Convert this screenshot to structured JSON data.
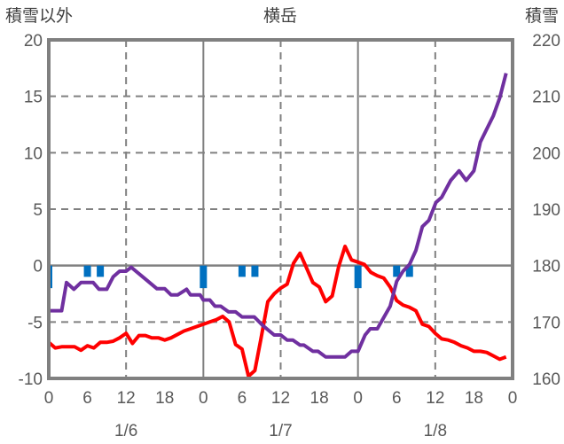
{
  "chart_data": {
    "type": "line",
    "title": "横岳",
    "ylabel_left": "積雪以外",
    "ylabel_right": "積雪",
    "ylim_left": [
      -10,
      20
    ],
    "ylim_right": [
      160,
      220
    ],
    "yticks_left": [
      "20",
      "15",
      "10",
      "5",
      "0",
      "-5",
      "-10"
    ],
    "yticks_right": [
      "220",
      "210",
      "200",
      "190",
      "180",
      "170",
      "160"
    ],
    "xlim_hours": [
      0,
      72
    ],
    "xticks": [
      "0",
      "6",
      "12",
      "18",
      "0",
      "6",
      "12",
      "18",
      "0",
      "6",
      "12",
      "18",
      "0"
    ],
    "date_labels": [
      "1/6",
      "1/7",
      "1/8"
    ],
    "grid": true,
    "series": [
      {
        "name": "temperature",
        "axis": "left",
        "color": "#ff0000",
        "points": [
          [
            0,
            -6.8
          ],
          [
            1,
            -7.3
          ],
          [
            2,
            -7.2
          ],
          [
            4,
            -7.2
          ],
          [
            5,
            -7.5
          ],
          [
            6,
            -7.1
          ],
          [
            7,
            -7.3
          ],
          [
            8,
            -6.8
          ],
          [
            9,
            -6.8
          ],
          [
            10,
            -6.7
          ],
          [
            11,
            -6.4
          ],
          [
            12,
            -6.0
          ],
          [
            13,
            -6.9
          ],
          [
            14,
            -6.2
          ],
          [
            15,
            -6.2
          ],
          [
            16,
            -6.4
          ],
          [
            17,
            -6.4
          ],
          [
            18,
            -6.6
          ],
          [
            19,
            -6.4
          ],
          [
            20,
            -6.1
          ],
          [
            21,
            -5.8
          ],
          [
            22,
            -5.6
          ],
          [
            23,
            -5.4
          ],
          [
            24,
            -5.2
          ],
          [
            25,
            -5.0
          ],
          [
            26,
            -4.8
          ],
          [
            27,
            -4.5
          ],
          [
            28,
            -5.0
          ],
          [
            29,
            -7.0
          ],
          [
            30,
            -7.4
          ],
          [
            31,
            -9.8
          ],
          [
            32,
            -9.3
          ],
          [
            33,
            -6.3
          ],
          [
            34,
            -3.2
          ],
          [
            35,
            -2.5
          ],
          [
            36,
            -2.0
          ],
          [
            37,
            -1.65
          ],
          [
            38,
            0.2
          ],
          [
            39,
            1.1
          ],
          [
            40,
            -0.2
          ],
          [
            41,
            -1.5
          ],
          [
            42,
            -1.9
          ],
          [
            43,
            -3.2
          ],
          [
            44,
            -2.7
          ],
          [
            45,
            -0.1
          ],
          [
            46,
            1.7
          ],
          [
            47,
            0.5
          ],
          [
            48,
            0.3
          ],
          [
            49,
            0.1
          ],
          [
            50,
            -0.6
          ],
          [
            51,
            -0.9
          ],
          [
            52,
            -1.1
          ],
          [
            53,
            -1.9
          ],
          [
            54,
            -3.1
          ],
          [
            55,
            -3.5
          ],
          [
            56,
            -3.7
          ],
          [
            57,
            -4.0
          ],
          [
            58,
            -5.2
          ],
          [
            59,
            -5.4
          ],
          [
            60,
            -6.0
          ],
          [
            61,
            -6.5
          ],
          [
            62,
            -6.6
          ],
          [
            63,
            -6.8
          ],
          [
            64,
            -7.1
          ],
          [
            65,
            -7.3
          ],
          [
            66,
            -7.6
          ],
          [
            67,
            -7.6
          ],
          [
            68,
            -7.7
          ],
          [
            69,
            -8.0
          ],
          [
            70,
            -8.3
          ],
          [
            71,
            -8.1
          ]
        ]
      },
      {
        "name": "snow_depth",
        "axis": "right",
        "color": "#7030a0",
        "points": [
          [
            0,
            172
          ],
          [
            1,
            172
          ],
          [
            2,
            172
          ],
          [
            2.75,
            177
          ],
          [
            3.9,
            175.8
          ],
          [
            5,
            177
          ],
          [
            6.9,
            177
          ],
          [
            7.8,
            175.8
          ],
          [
            9,
            175.8
          ],
          [
            10,
            178
          ],
          [
            11,
            179
          ],
          [
            12,
            179
          ],
          [
            12.8,
            179.7
          ],
          [
            14.8,
            177.8
          ],
          [
            16.8,
            175.9
          ],
          [
            18,
            175.9
          ],
          [
            19,
            174.8
          ],
          [
            20,
            174.8
          ],
          [
            21.4,
            175.8
          ],
          [
            22,
            174.8
          ],
          [
            23.5,
            174.8
          ],
          [
            24,
            173.9
          ],
          [
            25,
            173.9
          ],
          [
            25.8,
            172.8
          ],
          [
            26.7,
            172.8
          ],
          [
            27.9,
            171.8
          ],
          [
            29,
            171.8
          ],
          [
            30,
            170.9
          ],
          [
            31.9,
            170.9
          ],
          [
            33.3,
            169.3
          ],
          [
            35,
            167.7
          ],
          [
            36,
            167.7
          ],
          [
            37,
            166.8
          ],
          [
            37.9,
            166.8
          ],
          [
            39,
            165.9
          ],
          [
            39.6,
            165.9
          ],
          [
            41,
            164.8
          ],
          [
            41.8,
            164.8
          ],
          [
            43,
            163.8
          ],
          [
            46,
            163.8
          ],
          [
            47,
            164.8
          ],
          [
            48,
            164.8
          ],
          [
            49.1,
            167.7
          ],
          [
            49.9,
            168.8
          ],
          [
            51,
            168.8
          ],
          [
            53,
            172.8
          ],
          [
            54,
            177.2
          ],
          [
            55,
            179
          ],
          [
            56,
            180.2
          ],
          [
            57,
            182.7
          ],
          [
            58,
            186.9
          ],
          [
            59,
            188
          ],
          [
            60.1,
            191.2
          ],
          [
            61,
            192.1
          ],
          [
            62.4,
            195.1
          ],
          [
            63.7,
            196.8
          ],
          [
            64.8,
            195.1
          ],
          [
            66,
            196.8
          ],
          [
            67,
            201.9
          ],
          [
            68,
            204.2
          ],
          [
            69,
            206.5
          ],
          [
            70,
            209.7
          ],
          [
            71,
            214.1
          ]
        ]
      },
      {
        "name": "precipitation",
        "axis": "left",
        "type": "bar",
        "color": "#0070c0",
        "points": [
          [
            0,
            -2
          ],
          [
            6,
            -1
          ],
          [
            8,
            -1
          ],
          [
            24,
            -2
          ],
          [
            30,
            -1
          ],
          [
            32,
            -1
          ],
          [
            48,
            -2
          ],
          [
            54,
            -1
          ],
          [
            56,
            -1
          ]
        ]
      }
    ]
  }
}
